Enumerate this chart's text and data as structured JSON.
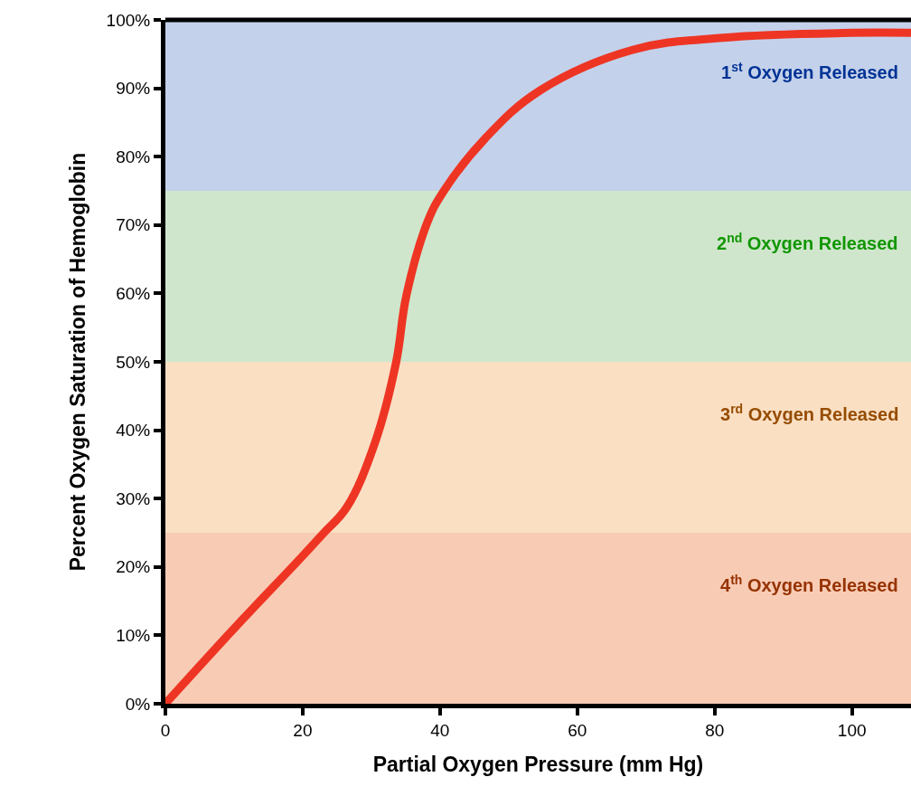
{
  "chart_data": {
    "type": "line",
    "xlabel": "Partial Oxygen Pressure (mm Hg)",
    "ylabel": "Percent Oxygen Saturation of Hemoglobin",
    "x": [
      0,
      10,
      19.7,
      23,
      26.4,
      30.5,
      33.6,
      35.1,
      38.2,
      40.5,
      46.6,
      54.6,
      68,
      81.2,
      100,
      108.6
    ],
    "series": [
      {
        "color": "#ee3524",
        "values": [
          0,
          11,
          21.3,
          24.9,
          28.7,
          38.1,
          49.9,
          59.7,
          70.5,
          74.9,
          82.7,
          89.7,
          95.6,
          97.4,
          98.1,
          98.1
        ]
      }
    ],
    "xlim": [
      0,
      108.6
    ],
    "ylim": [
      0,
      100
    ],
    "xticks": [
      0,
      20,
      40,
      60,
      80,
      100
    ],
    "yticks": [
      {
        "value": 0,
        "label": "0%"
      },
      {
        "value": 10,
        "label": "10%"
      },
      {
        "value": 20,
        "label": "20%"
      },
      {
        "value": 30,
        "label": "30%"
      },
      {
        "value": 40,
        "label": "40%"
      },
      {
        "value": 50,
        "label": "50%"
      },
      {
        "value": 60,
        "label": "60%"
      },
      {
        "value": 70,
        "label": "70%"
      },
      {
        "value": 80,
        "label": "80%"
      },
      {
        "value": 90,
        "label": "90%"
      },
      {
        "value": 100,
        "label": "100%"
      }
    ],
    "bands": [
      {
        "axis": "y",
        "from": 75,
        "to": 100,
        "label": "1$^{st}$ Oxygen Released",
        "color": "#c4d1ea"
      },
      {
        "axis": "y",
        "from": 50,
        "to": 75,
        "label": "2$^{nd}$ Oxygen Released",
        "color": "#cfe6cc"
      },
      {
        "axis": "y",
        "from": 25,
        "to": 50,
        "label": "3$^{rd}$ Oxygen Released",
        "color": "#fadfc3"
      },
      {
        "axis": "y",
        "from": 0,
        "to": 25,
        "label": "4$^{th}$ Oxygen Released",
        "color": "#f8cbb4"
      }
    ],
    "grid": false,
    "line_style": "solid"
  }
}
